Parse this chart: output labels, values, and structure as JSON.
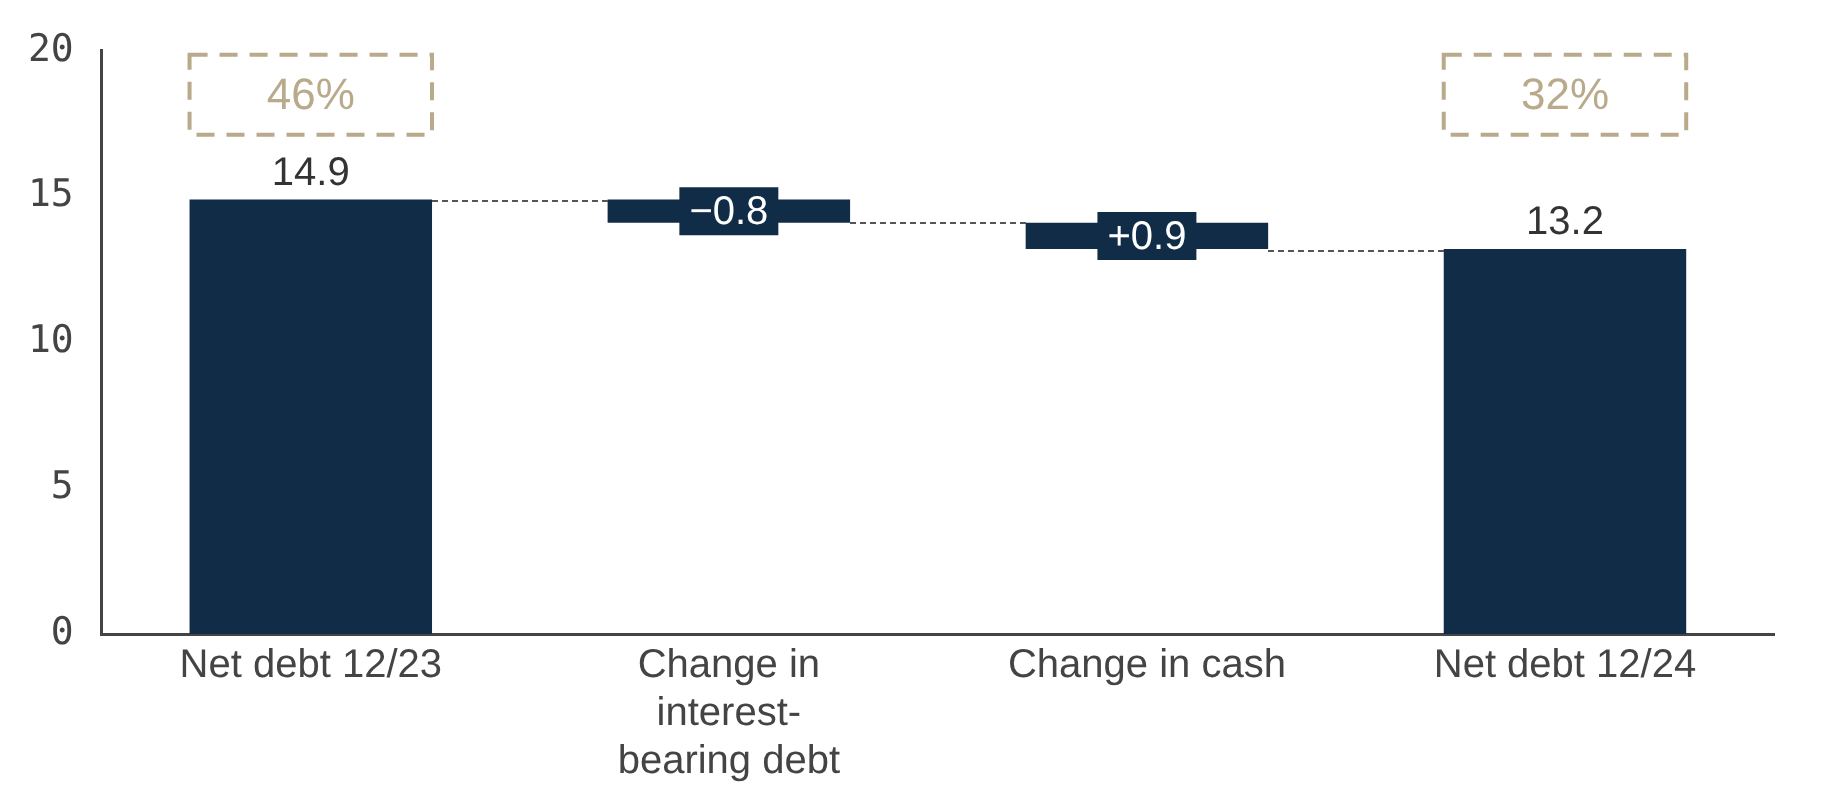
{
  "chart_data": {
    "type": "bar",
    "categories": [
      "Net debt 12/23",
      "Change in interest-bearing debt",
      "Change in cash",
      "Net debt 12/24"
    ],
    "values": [
      14.9,
      -0.8,
      -0.9,
      13.2
    ],
    "base": [
      0,
      14.9,
      14.1,
      0
    ],
    "value_labels": [
      "14.9",
      "−0.8",
      "+0.9",
      "13.2"
    ],
    "color": "#112c47",
    "ylim": [
      0,
      20
    ],
    "yticks": [
      0,
      5,
      10,
      15,
      20
    ],
    "grid": false,
    "legend": false,
    "annotations": [
      "46%",
      "32%"
    ]
  }
}
